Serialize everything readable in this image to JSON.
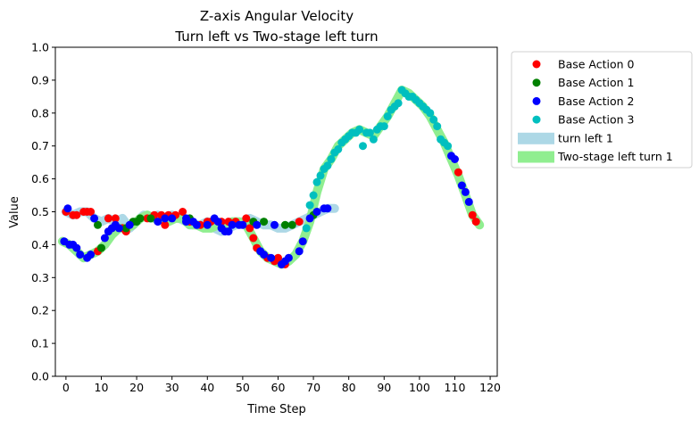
{
  "chart_data": {
    "type": "scatter",
    "title_line1": "Z-axis Angular Velocity",
    "title_line2": "Turn left vs Two-stage left turn",
    "xlabel": "Time Step",
    "ylabel": "Value",
    "xlim": [
      -3,
      122
    ],
    "ylim": [
      0.0,
      1.0
    ],
    "xticks": [
      0,
      10,
      20,
      30,
      40,
      50,
      60,
      70,
      80,
      90,
      100,
      110,
      120
    ],
    "yticks": [
      0.0,
      0.1,
      0.2,
      0.3,
      0.4,
      0.5,
      0.6,
      0.7,
      0.8,
      0.9,
      1.0
    ],
    "legend_position": "outside-right",
    "legend": [
      {
        "label": "Base Action 0",
        "kind": "marker",
        "color": "#ff0000"
      },
      {
        "label": "Base Action 1",
        "kind": "marker",
        "color": "#008000"
      },
      {
        "label": "Base Action 2",
        "kind": "marker",
        "color": "#0000ff"
      },
      {
        "label": "Base Action 3",
        "kind": "marker",
        "color": "#00bfbf"
      },
      {
        "label": "turn left 1",
        "kind": "line",
        "color": "#add8e6"
      },
      {
        "label": "Two-stage left turn 1",
        "kind": "line",
        "color": "#90ee90"
      }
    ],
    "lines": [
      {
        "name": "turn left 1",
        "color": "#add8e6",
        "points": [
          [
            0,
            0.5
          ],
          [
            2,
            0.49
          ],
          [
            4,
            0.5
          ],
          [
            6,
            0.5
          ],
          [
            8,
            0.48
          ],
          [
            10,
            0.47
          ],
          [
            12,
            0.48
          ],
          [
            14,
            0.47
          ],
          [
            16,
            0.48
          ],
          [
            18,
            0.45
          ],
          [
            20,
            0.47
          ],
          [
            22,
            0.49
          ],
          [
            24,
            0.48
          ],
          [
            26,
            0.49
          ],
          [
            28,
            0.48
          ],
          [
            30,
            0.49
          ],
          [
            32,
            0.48
          ],
          [
            34,
            0.47
          ],
          [
            36,
            0.46
          ],
          [
            38,
            0.46
          ],
          [
            40,
            0.47
          ],
          [
            42,
            0.45
          ],
          [
            44,
            0.44
          ],
          [
            46,
            0.45
          ],
          [
            48,
            0.46
          ],
          [
            50,
            0.47
          ],
          [
            52,
            0.48
          ],
          [
            54,
            0.47
          ],
          [
            56,
            0.46
          ],
          [
            58,
            0.46
          ],
          [
            60,
            0.45
          ],
          [
            62,
            0.45
          ],
          [
            64,
            0.46
          ],
          [
            66,
            0.47
          ],
          [
            68,
            0.48
          ],
          [
            70,
            0.49
          ],
          [
            72,
            0.5
          ],
          [
            74,
            0.51
          ],
          [
            76,
            0.51
          ]
        ]
      },
      {
        "name": "Two-stage left turn 1",
        "color": "#90ee90",
        "points": [
          [
            -1,
            0.41
          ],
          [
            1,
            0.4
          ],
          [
            3,
            0.38
          ],
          [
            5,
            0.36
          ],
          [
            7,
            0.37
          ],
          [
            9,
            0.38
          ],
          [
            11,
            0.4
          ],
          [
            13,
            0.43
          ],
          [
            15,
            0.45
          ],
          [
            17,
            0.45
          ],
          [
            19,
            0.46
          ],
          [
            21,
            0.48
          ],
          [
            23,
            0.49
          ],
          [
            25,
            0.48
          ],
          [
            27,
            0.48
          ],
          [
            29,
            0.47
          ],
          [
            31,
            0.48
          ],
          [
            33,
            0.48
          ],
          [
            35,
            0.46
          ],
          [
            37,
            0.46
          ],
          [
            39,
            0.45
          ],
          [
            41,
            0.45
          ],
          [
            43,
            0.46
          ],
          [
            45,
            0.46
          ],
          [
            47,
            0.47
          ],
          [
            49,
            0.47
          ],
          [
            51,
            0.46
          ],
          [
            53,
            0.42
          ],
          [
            55,
            0.38
          ],
          [
            57,
            0.36
          ],
          [
            59,
            0.35
          ],
          [
            61,
            0.34
          ],
          [
            63,
            0.35
          ],
          [
            65,
            0.37
          ],
          [
            67,
            0.41
          ],
          [
            69,
            0.47
          ],
          [
            71,
            0.56
          ],
          [
            73,
            0.63
          ],
          [
            75,
            0.66
          ],
          [
            77,
            0.7
          ],
          [
            79,
            0.72
          ],
          [
            81,
            0.74
          ],
          [
            83,
            0.75
          ],
          [
            85,
            0.74
          ],
          [
            87,
            0.73
          ],
          [
            89,
            0.76
          ],
          [
            91,
            0.79
          ],
          [
            93,
            0.83
          ],
          [
            95,
            0.87
          ],
          [
            97,
            0.86
          ],
          [
            99,
            0.84
          ],
          [
            101,
            0.82
          ],
          [
            103,
            0.79
          ],
          [
            105,
            0.75
          ],
          [
            107,
            0.71
          ],
          [
            109,
            0.66
          ],
          [
            111,
            0.61
          ],
          [
            113,
            0.55
          ],
          [
            115,
            0.49
          ],
          [
            117,
            0.46
          ]
        ]
      }
    ],
    "series": [
      {
        "name": "Base Action 0",
        "color": "#ff0000",
        "points": [
          [
            0,
            0.5
          ],
          [
            2,
            0.49
          ],
          [
            3,
            0.49
          ],
          [
            5,
            0.5
          ],
          [
            6,
            0.5
          ],
          [
            7,
            0.5
          ],
          [
            9,
            0.38
          ],
          [
            12,
            0.48
          ],
          [
            14,
            0.48
          ],
          [
            16,
            0.45
          ],
          [
            17,
            0.44
          ],
          [
            23,
            0.48
          ],
          [
            25,
            0.49
          ],
          [
            27,
            0.49
          ],
          [
            28,
            0.46
          ],
          [
            29,
            0.49
          ],
          [
            31,
            0.49
          ],
          [
            33,
            0.5
          ],
          [
            35,
            0.47
          ],
          [
            38,
            0.46
          ],
          [
            40,
            0.47
          ],
          [
            41,
            0.47
          ],
          [
            44,
            0.47
          ],
          [
            46,
            0.47
          ],
          [
            48,
            0.47
          ],
          [
            51,
            0.48
          ],
          [
            52,
            0.45
          ],
          [
            53,
            0.42
          ],
          [
            54,
            0.39
          ],
          [
            57,
            0.36
          ],
          [
            59,
            0.35
          ],
          [
            60,
            0.36
          ],
          [
            62,
            0.34
          ],
          [
            66,
            0.47
          ],
          [
            111,
            0.62
          ],
          [
            115,
            0.49
          ],
          [
            116,
            0.47
          ]
        ]
      },
      {
        "name": "Base Action 1",
        "color": "#008000",
        "points": [
          [
            9,
            0.46
          ],
          [
            10,
            0.39
          ],
          [
            17,
            0.45
          ],
          [
            19,
            0.47
          ],
          [
            20,
            0.47
          ],
          [
            21,
            0.48
          ],
          [
            24,
            0.48
          ],
          [
            35,
            0.48
          ],
          [
            53,
            0.47
          ],
          [
            56,
            0.47
          ],
          [
            62,
            0.46
          ],
          [
            64,
            0.46
          ],
          [
            70,
            0.49
          ]
        ]
      },
      {
        "name": "Base Action 2",
        "color": "#0000ff",
        "points": [
          [
            -0.5,
            0.41
          ],
          [
            0.5,
            0.51
          ],
          [
            1,
            0.4
          ],
          [
            2,
            0.4
          ],
          [
            3,
            0.39
          ],
          [
            4,
            0.37
          ],
          [
            6,
            0.36
          ],
          [
            7,
            0.37
          ],
          [
            8,
            0.48
          ],
          [
            11,
            0.42
          ],
          [
            12,
            0.44
          ],
          [
            13,
            0.45
          ],
          [
            14,
            0.46
          ],
          [
            15,
            0.45
          ],
          [
            18,
            0.46
          ],
          [
            26,
            0.47
          ],
          [
            28,
            0.48
          ],
          [
            30,
            0.48
          ],
          [
            34,
            0.48
          ],
          [
            34,
            0.47
          ],
          [
            36,
            0.47
          ],
          [
            37,
            0.46
          ],
          [
            40,
            0.46
          ],
          [
            42,
            0.48
          ],
          [
            43,
            0.47
          ],
          [
            44,
            0.45
          ],
          [
            45,
            0.44
          ],
          [
            46,
            0.44
          ],
          [
            47,
            0.46
          ],
          [
            49,
            0.46
          ],
          [
            50,
            0.46
          ],
          [
            54,
            0.46
          ],
          [
            55,
            0.38
          ],
          [
            56,
            0.37
          ],
          [
            58,
            0.36
          ],
          [
            59,
            0.46
          ],
          [
            61,
            0.34
          ],
          [
            62,
            0.35
          ],
          [
            63,
            0.36
          ],
          [
            66,
            0.38
          ],
          [
            67,
            0.41
          ],
          [
            69,
            0.48
          ],
          [
            71,
            0.5
          ],
          [
            73,
            0.51
          ],
          [
            74,
            0.51
          ],
          [
            109,
            0.67
          ],
          [
            110,
            0.66
          ],
          [
            112,
            0.58
          ],
          [
            113,
            0.56
          ],
          [
            114,
            0.53
          ]
        ]
      },
      {
        "name": "Base Action 3",
        "color": "#00bfbf",
        "points": [
          [
            68,
            0.45
          ],
          [
            69,
            0.52
          ],
          [
            70,
            0.55
          ],
          [
            71,
            0.59
          ],
          [
            72,
            0.61
          ],
          [
            73,
            0.63
          ],
          [
            74,
            0.64
          ],
          [
            75,
            0.66
          ],
          [
            76,
            0.68
          ],
          [
            77,
            0.69
          ],
          [
            78,
            0.71
          ],
          [
            79,
            0.72
          ],
          [
            80,
            0.73
          ],
          [
            81,
            0.74
          ],
          [
            82,
            0.74
          ],
          [
            83,
            0.75
          ],
          [
            84,
            0.7
          ],
          [
            85,
            0.74
          ],
          [
            86,
            0.74
          ],
          [
            87,
            0.72
          ],
          [
            88,
            0.75
          ],
          [
            89,
            0.76
          ],
          [
            90,
            0.76
          ],
          [
            91,
            0.79
          ],
          [
            92,
            0.81
          ],
          [
            93,
            0.82
          ],
          [
            94,
            0.83
          ],
          [
            95,
            0.87
          ],
          [
            96,
            0.86
          ],
          [
            97,
            0.85
          ],
          [
            98,
            0.85
          ],
          [
            99,
            0.84
          ],
          [
            100,
            0.83
          ],
          [
            101,
            0.82
          ],
          [
            102,
            0.81
          ],
          [
            103,
            0.8
          ],
          [
            104,
            0.78
          ],
          [
            105,
            0.76
          ],
          [
            106,
            0.72
          ],
          [
            107,
            0.71
          ],
          [
            108,
            0.7
          ]
        ]
      }
    ]
  }
}
